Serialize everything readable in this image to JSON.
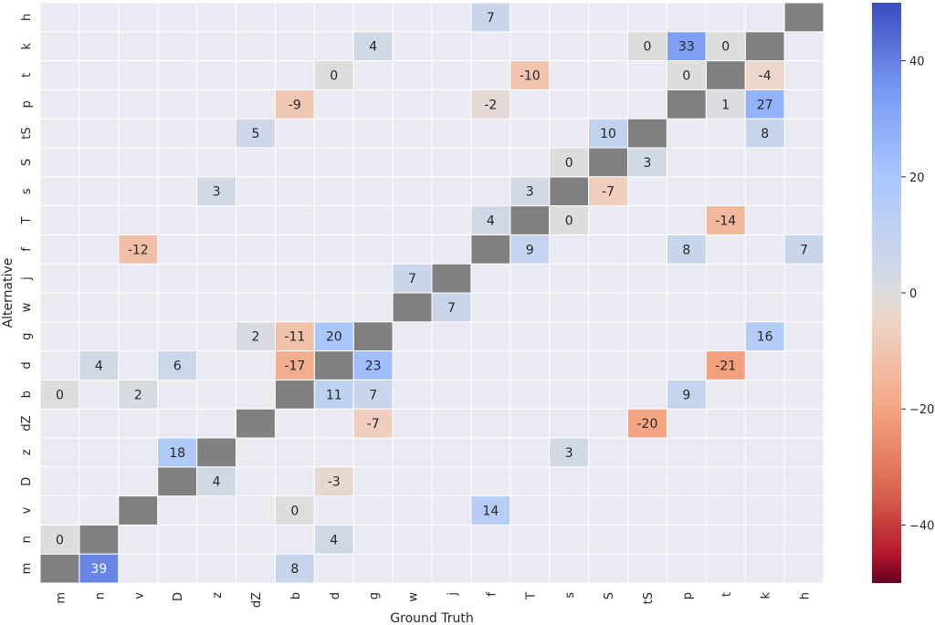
{
  "chart_data": {
    "type": "heatmap",
    "xlabel": "Ground Truth",
    "ylabel": "Alternative",
    "x_categories": [
      "m",
      "n",
      "v",
      "D",
      "z",
      "dZ",
      "b",
      "d",
      "g",
      "w",
      "j",
      "f",
      "T",
      "s",
      "S",
      "tS",
      "p",
      "t",
      "k",
      "h"
    ],
    "y_categories": [
      "h",
      "k",
      "t",
      "p",
      "tS",
      "S",
      "s",
      "T",
      "f",
      "j",
      "w",
      "g",
      "d",
      "b",
      "dZ",
      "z",
      "D",
      "v",
      "n",
      "m"
    ],
    "cells": [
      {
        "x": "f",
        "y": "h",
        "value": 7
      },
      {
        "x": "g",
        "y": "k",
        "value": 4
      },
      {
        "x": "tS",
        "y": "k",
        "value": 0
      },
      {
        "x": "p",
        "y": "k",
        "value": 33
      },
      {
        "x": "t",
        "y": "k",
        "value": 0
      },
      {
        "x": "d",
        "y": "t",
        "value": 0
      },
      {
        "x": "T",
        "y": "t",
        "value": -10
      },
      {
        "x": "p",
        "y": "t",
        "value": 0
      },
      {
        "x": "k",
        "y": "t",
        "value": -4
      },
      {
        "x": "b",
        "y": "p",
        "value": -9
      },
      {
        "x": "f",
        "y": "p",
        "value": -2
      },
      {
        "x": "t",
        "y": "p",
        "value": 1
      },
      {
        "x": "k",
        "y": "p",
        "value": 27
      },
      {
        "x": "dZ",
        "y": "tS",
        "value": 5
      },
      {
        "x": "S",
        "y": "tS",
        "value": 10
      },
      {
        "x": "k",
        "y": "tS",
        "value": 8
      },
      {
        "x": "s",
        "y": "S",
        "value": 0
      },
      {
        "x": "tS",
        "y": "S",
        "value": 3
      },
      {
        "x": "z",
        "y": "s",
        "value": 3
      },
      {
        "x": "T",
        "y": "s",
        "value": 3
      },
      {
        "x": "S",
        "y": "s",
        "value": -7
      },
      {
        "x": "f",
        "y": "T",
        "value": 4
      },
      {
        "x": "s",
        "y": "T",
        "value": 0
      },
      {
        "x": "t",
        "y": "T",
        "value": -14
      },
      {
        "x": "v",
        "y": "f",
        "value": -12
      },
      {
        "x": "T",
        "y": "f",
        "value": 9
      },
      {
        "x": "p",
        "y": "f",
        "value": 8
      },
      {
        "x": "h",
        "y": "f",
        "value": 7
      },
      {
        "x": "w",
        "y": "j",
        "value": 7
      },
      {
        "x": "j",
        "y": "w",
        "value": 7
      },
      {
        "x": "dZ",
        "y": "g",
        "value": 2
      },
      {
        "x": "b",
        "y": "g",
        "value": -11
      },
      {
        "x": "d",
        "y": "g",
        "value": 20
      },
      {
        "x": "k",
        "y": "g",
        "value": 16
      },
      {
        "x": "n",
        "y": "d",
        "value": 4
      },
      {
        "x": "D",
        "y": "d",
        "value": 6
      },
      {
        "x": "b",
        "y": "d",
        "value": -17
      },
      {
        "x": "g",
        "y": "d",
        "value": 23
      },
      {
        "x": "t",
        "y": "d",
        "value": -21
      },
      {
        "x": "m",
        "y": "b",
        "value": 0
      },
      {
        "x": "v",
        "y": "b",
        "value": 2
      },
      {
        "x": "d",
        "y": "b",
        "value": 11
      },
      {
        "x": "g",
        "y": "b",
        "value": 7
      },
      {
        "x": "p",
        "y": "b",
        "value": 9
      },
      {
        "x": "g",
        "y": "dZ",
        "value": -7
      },
      {
        "x": "tS",
        "y": "dZ",
        "value": -20
      },
      {
        "x": "D",
        "y": "z",
        "value": 18
      },
      {
        "x": "s",
        "y": "z",
        "value": 3
      },
      {
        "x": "z",
        "y": "D",
        "value": 4
      },
      {
        "x": "d",
        "y": "D",
        "value": -3
      },
      {
        "x": "b",
        "y": "v",
        "value": 0
      },
      {
        "x": "f",
        "y": "v",
        "value": 14
      },
      {
        "x": "m",
        "y": "n",
        "value": 0
      },
      {
        "x": "d",
        "y": "n",
        "value": 4
      },
      {
        "x": "n",
        "y": "m",
        "value": 39
      },
      {
        "x": "b",
        "y": "m",
        "value": 8
      }
    ],
    "masked_cells": [
      {
        "x": "h",
        "y": "h"
      },
      {
        "x": "k",
        "y": "k"
      },
      {
        "x": "t",
        "y": "t"
      },
      {
        "x": "p",
        "y": "p"
      },
      {
        "x": "tS",
        "y": "tS"
      },
      {
        "x": "S",
        "y": "S"
      },
      {
        "x": "s",
        "y": "s"
      },
      {
        "x": "T",
        "y": "T"
      },
      {
        "x": "f",
        "y": "f"
      },
      {
        "x": "j",
        "y": "j"
      },
      {
        "x": "w",
        "y": "w"
      },
      {
        "x": "g",
        "y": "g"
      },
      {
        "x": "d",
        "y": "d"
      },
      {
        "x": "b",
        "y": "b"
      },
      {
        "x": "dZ",
        "y": "dZ"
      },
      {
        "x": "z",
        "y": "z"
      },
      {
        "x": "D",
        "y": "D"
      },
      {
        "x": "v",
        "y": "v"
      },
      {
        "x": "n",
        "y": "n"
      },
      {
        "x": "m",
        "y": "m"
      }
    ],
    "colorbar": {
      "colormap": "coolwarm_r",
      "vmin": -50,
      "vmax": 50,
      "ticks": [
        {
          "value": 40,
          "label": "40"
        },
        {
          "value": 20,
          "label": "20"
        },
        {
          "value": 0,
          "label": "0"
        },
        {
          "value": -20,
          "label": "−20"
        },
        {
          "value": -40,
          "label": "−40"
        }
      ]
    },
    "colors": {
      "background": "#eaeaf2",
      "masked": "#808080",
      "cell_border": "#ffffff"
    },
    "grid": true,
    "legend": "colorbar-right"
  }
}
